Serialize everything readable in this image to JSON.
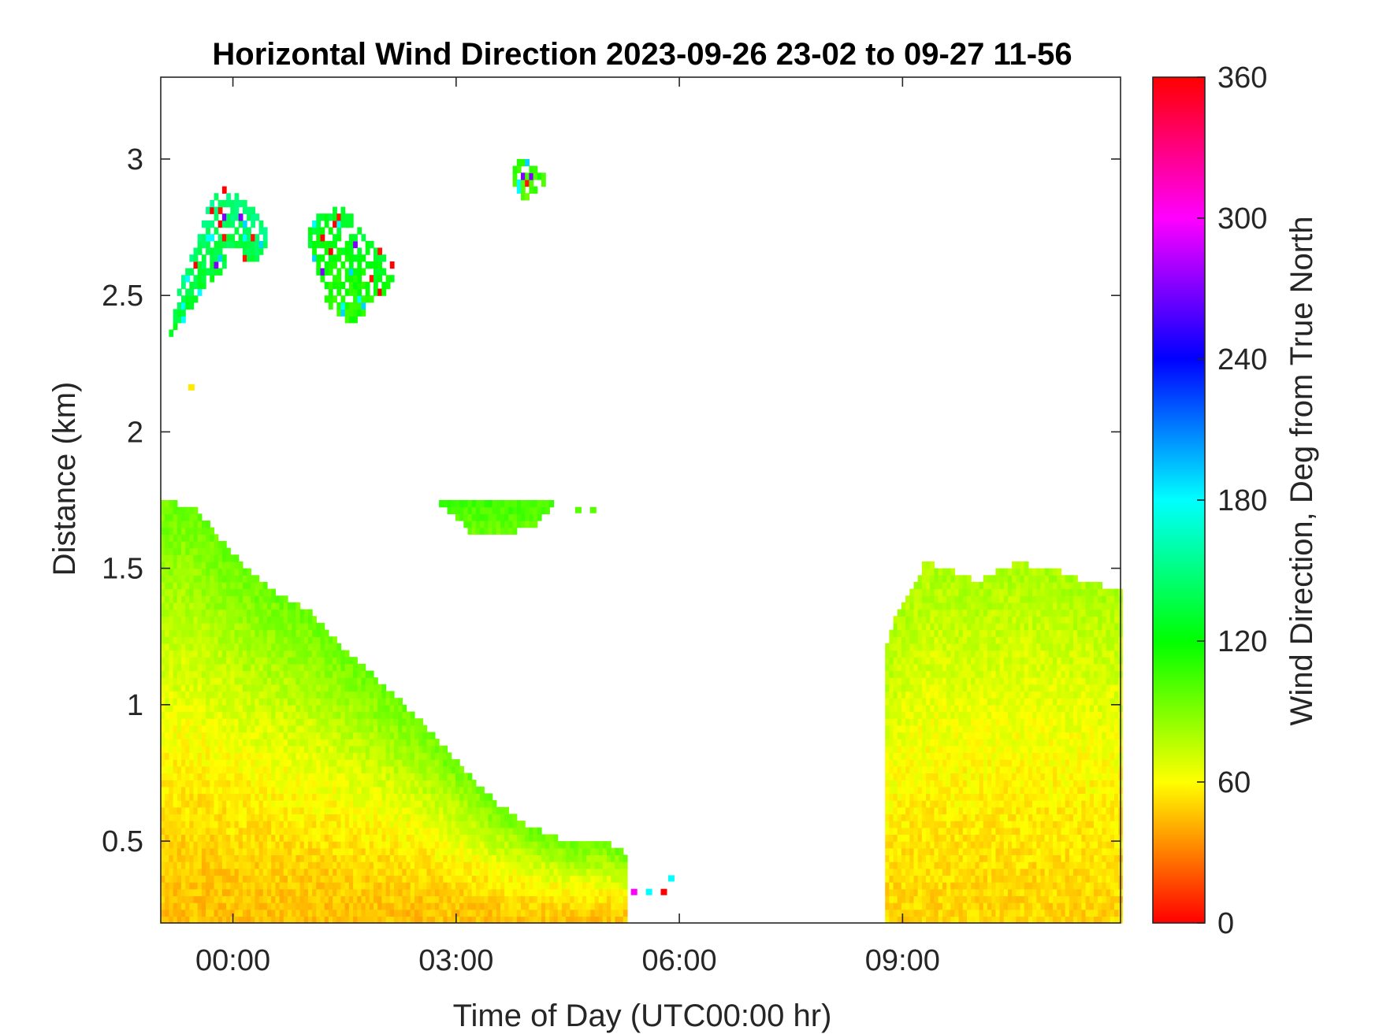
{
  "chart_data": {
    "type": "heatmap",
    "title": "Horizontal Wind Direction 2023-09-26 23-02 to 09-27 11-56",
    "xlabel": "Time of Day (UTC00:00 hr)",
    "ylabel": "Distance (km)",
    "colorbar_label": "Wind Direction, Deg from True North",
    "xlim_hours": [
      -0.97,
      11.93
    ],
    "ylim_km": [
      0.2,
      3.3
    ],
    "x_ticks": [
      {
        "value": 0,
        "label": "00:00"
      },
      {
        "value": 3,
        "label": "03:00"
      },
      {
        "value": 6,
        "label": "06:00"
      },
      {
        "value": 9,
        "label": "09:00"
      }
    ],
    "y_ticks": [
      {
        "value": 0.5,
        "label": "0.5"
      },
      {
        "value": 1,
        "label": "1"
      },
      {
        "value": 1.5,
        "label": "1.5"
      },
      {
        "value": 2,
        "label": "2"
      },
      {
        "value": 2.5,
        "label": "2.5"
      },
      {
        "value": 3,
        "label": "3"
      }
    ],
    "colorbar_ticks": [
      {
        "value": 0,
        "label": "0"
      },
      {
        "value": 60,
        "label": "60"
      },
      {
        "value": 120,
        "label": "120"
      },
      {
        "value": 180,
        "label": "180"
      },
      {
        "value": 240,
        "label": "240"
      },
      {
        "value": 300,
        "label": "300"
      },
      {
        "value": 360,
        "label": "360"
      }
    ],
    "clim": [
      0,
      360
    ],
    "colormap": [
      "#ff0000",
      "#ffff00",
      "#00ff00",
      "#00ffff",
      "#0000ff",
      "#ff00ff",
      "#ff0000"
    ],
    "grid": false,
    "regions": [
      {
        "name": "nocturnal-layer",
        "poly": [
          [
            -0.97,
            0.2
          ],
          [
            -0.97,
            1.75
          ],
          [
            -0.5,
            1.72
          ],
          [
            0,
            1.55
          ],
          [
            0.5,
            1.42
          ],
          [
            1,
            1.35
          ],
          [
            1.5,
            1.2
          ],
          [
            2,
            1.08
          ],
          [
            2.5,
            0.95
          ],
          [
            3,
            0.8
          ],
          [
            3.5,
            0.65
          ],
          [
            4,
            0.55
          ],
          [
            4.5,
            0.5
          ],
          [
            5,
            0.5
          ],
          [
            5.3,
            0.45
          ],
          [
            5.3,
            0.2
          ]
        ],
        "dir_bottom": 45,
        "dir_top": 95
      },
      {
        "name": "daytime-layer",
        "poly": [
          [
            8.75,
            0.2
          ],
          [
            8.75,
            1.2
          ],
          [
            8.95,
            1.35
          ],
          [
            9.3,
            1.52
          ],
          [
            9.6,
            1.5
          ],
          [
            10,
            1.45
          ],
          [
            10.5,
            1.52
          ],
          [
            11,
            1.5
          ],
          [
            11.5,
            1.45
          ],
          [
            11.93,
            1.42
          ],
          [
            11.93,
            0.2
          ]
        ],
        "dir_bottom": 50,
        "dir_top": 80
      },
      {
        "name": "mid-cloud",
        "poly": [
          [
            2.75,
            1.75
          ],
          [
            3.2,
            1.63
          ],
          [
            3.6,
            1.62
          ],
          [
            4.1,
            1.66
          ],
          [
            4.3,
            1.74
          ],
          [
            3.9,
            1.74
          ],
          [
            3.3,
            1.75
          ]
        ],
        "dir_bottom": 95,
        "dir_top": 105
      },
      {
        "name": "upper-cloud-1",
        "poly": [
          [
            -0.85,
            2.35
          ],
          [
            -0.4,
            2.5
          ],
          [
            0,
            2.65
          ],
          [
            0.3,
            2.62
          ],
          [
            0.5,
            2.72
          ],
          [
            0.2,
            2.85
          ],
          [
            -0.2,
            2.9
          ],
          [
            -0.45,
            2.75
          ],
          [
            -0.8,
            2.45
          ]
        ],
        "dir_bottom": 120,
        "dir_top": 150
      },
      {
        "name": "upper-cloud-2",
        "poly": [
          [
            1.0,
            2.7
          ],
          [
            1.3,
            2.45
          ],
          [
            1.6,
            2.4
          ],
          [
            2.1,
            2.52
          ],
          [
            2.2,
            2.62
          ],
          [
            1.9,
            2.68
          ],
          [
            1.5,
            2.82
          ],
          [
            1.1,
            2.8
          ]
        ],
        "dir_bottom": 110,
        "dir_top": 130
      },
      {
        "name": "upper-cloud-3",
        "poly": [
          [
            3.65,
            2.97
          ],
          [
            3.9,
            2.85
          ],
          [
            4.25,
            2.93
          ],
          [
            3.95,
            3.0
          ]
        ],
        "dir_bottom": 100,
        "dir_top": 110
      }
    ],
    "specks": [
      {
        "x": 5.35,
        "y": 0.3,
        "dir": 300
      },
      {
        "x": 5.55,
        "y": 0.3,
        "dir": 180
      },
      {
        "x": 5.75,
        "y": 0.3,
        "dir": 0
      },
      {
        "x": 5.85,
        "y": 0.35,
        "dir": 180
      },
      {
        "x": -0.6,
        "y": 2.15,
        "dir": 55
      },
      {
        "x": 4.6,
        "y": 1.7,
        "dir": 100
      },
      {
        "x": 4.8,
        "y": 1.7,
        "dir": 100
      }
    ]
  }
}
